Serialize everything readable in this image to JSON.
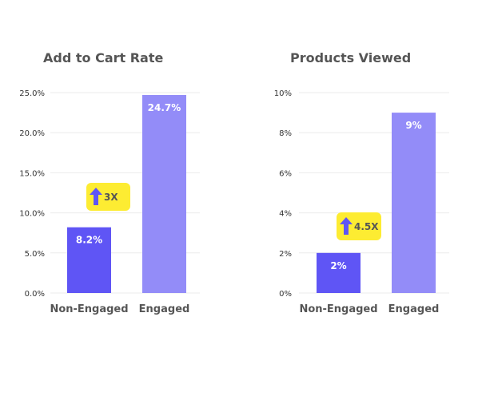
{
  "chart_data": [
    {
      "type": "bar",
      "title": "Add to Cart Rate",
      "categories": [
        "Non-Engaged",
        "Engaged"
      ],
      "values": [
        8.2,
        24.7
      ],
      "data_labels": [
        "8.2%",
        "24.7%"
      ],
      "ylim": [
        0,
        25
      ],
      "yticks": [
        0,
        5,
        10,
        15,
        20,
        25
      ],
      "ytick_labels": [
        "0.0%",
        "5.0%",
        "10.0%",
        "15.0%",
        "20.0%",
        "25.0%"
      ],
      "grid": true,
      "bar_colors": [
        "#5f55f5",
        "#938cf8"
      ],
      "annotation": {
        "text": "3X",
        "icon": "up-arrow-icon",
        "color": "#fdec32",
        "arrow_color": "#5f55f5"
      }
    },
    {
      "type": "bar",
      "title": "Products Viewed",
      "categories": [
        "Non-Engaged",
        "Engaged"
      ],
      "values": [
        2,
        9
      ],
      "data_labels": [
        "2%",
        "9%"
      ],
      "ylim": [
        0,
        10
      ],
      "yticks": [
        0,
        2,
        4,
        6,
        8,
        10
      ],
      "ytick_labels": [
        "0%",
        "2%",
        "4%",
        "6%",
        "8%",
        "10%"
      ],
      "grid": true,
      "bar_colors": [
        "#5f55f5",
        "#938cf8"
      ],
      "annotation": {
        "text": "4.5X",
        "icon": "up-arrow-icon",
        "color": "#fdec32",
        "arrow_color": "#5f55f5"
      }
    }
  ]
}
